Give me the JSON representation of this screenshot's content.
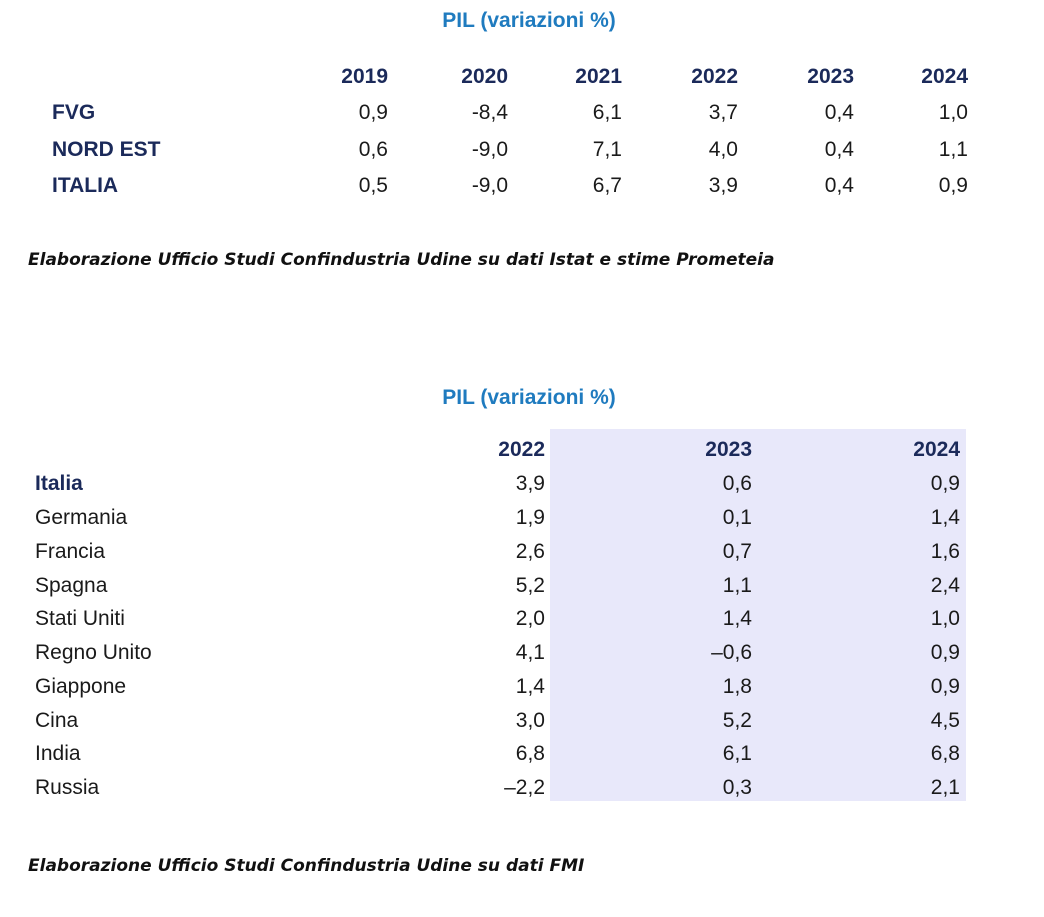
{
  "table1": {
    "title": "PIL (variazioni %)",
    "years": [
      "2019",
      "2020",
      "2021",
      "2022",
      "2023",
      "2024"
    ],
    "rows": [
      {
        "label": "FVG",
        "values": [
          "0,9",
          "-8,4",
          "6,1",
          "3,7",
          "0,4",
          "1,0"
        ]
      },
      {
        "label": "NORD EST",
        "values": [
          "0,6",
          "-9,0",
          "7,1",
          "4,0",
          "0,4",
          "1,1"
        ]
      },
      {
        "label": "ITALIA",
        "values": [
          "0,5",
          "-9,0",
          "6,7",
          "3,9",
          "0,4",
          "0,9"
        ]
      }
    ],
    "source": "Elaborazione Ufficio Studi Confindustria Udine su dati Istat e stime Prometeia"
  },
  "table2": {
    "title": "PIL (variazioni %)",
    "years": [
      "2022",
      "2023",
      "2024"
    ],
    "shaded_color": "#e8e8fa",
    "rows": [
      {
        "label": "Italia",
        "bold": true,
        "values": [
          "3,9",
          "0,6",
          "0,9"
        ]
      },
      {
        "label": "Germania",
        "bold": false,
        "values": [
          "1,9",
          "0,1",
          "1,4"
        ]
      },
      {
        "label": "Francia",
        "bold": false,
        "values": [
          "2,6",
          "0,7",
          "1,6"
        ]
      },
      {
        "label": "Spagna",
        "bold": false,
        "values": [
          "5,2",
          "1,1",
          "2,4"
        ]
      },
      {
        "label": "Stati Uniti",
        "bold": false,
        "values": [
          "2,0",
          "1,4",
          "1,0"
        ]
      },
      {
        "label": "Regno Unito",
        "bold": false,
        "values": [
          "4,1",
          "–0,6",
          "0,9"
        ]
      },
      {
        "label": "Giappone",
        "bold": false,
        "values": [
          "1,4",
          "1,8",
          "0,9"
        ]
      },
      {
        "label": "Cina",
        "bold": false,
        "values": [
          "3,0",
          "5,2",
          "4,5"
        ]
      },
      {
        "label": "India",
        "bold": false,
        "values": [
          "6,8",
          "6,1",
          "6,8"
        ]
      },
      {
        "label": "Russia",
        "bold": false,
        "values": [
          "–2,2",
          "0,3",
          "2,1"
        ]
      }
    ],
    "source": "Elaborazione Ufficio Studi Confindustria Udine su dati FMI"
  },
  "colors": {
    "title": "#1f7bbf",
    "header": "#1b2a5a",
    "shade": "#e8e8fa"
  }
}
